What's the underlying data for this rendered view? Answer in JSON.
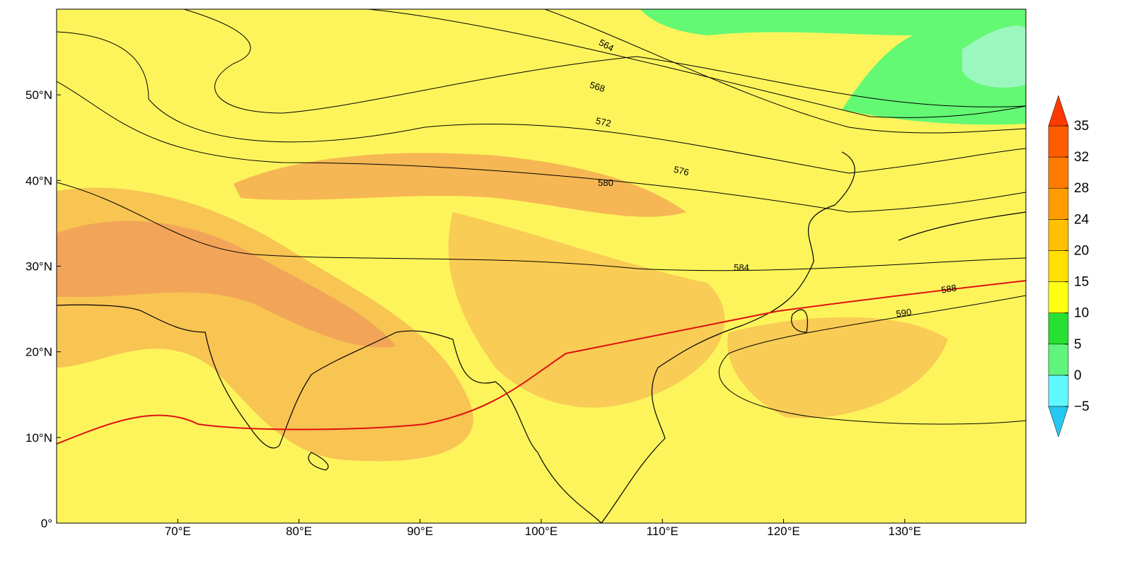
{
  "map": {
    "xlim": [
      60,
      140
    ],
    "ylim": [
      0,
      60
    ],
    "lon_ticks": [
      {
        "value": 70,
        "label": "70°E"
      },
      {
        "value": 80,
        "label": "80°E"
      },
      {
        "value": 90,
        "label": "90°E"
      },
      {
        "value": 100,
        "label": "100°E"
      },
      {
        "value": 110,
        "label": "110°E"
      },
      {
        "value": 120,
        "label": "120°E"
      },
      {
        "value": 130,
        "label": "130°E"
      }
    ],
    "lat_ticks": [
      {
        "value": 0,
        "label": "0°"
      },
      {
        "value": 10,
        "label": "10°N"
      },
      {
        "value": 20,
        "label": "20°N"
      },
      {
        "value": 30,
        "label": "30°N"
      },
      {
        "value": 40,
        "label": "40°N"
      },
      {
        "value": 50,
        "label": "50°N"
      }
    ],
    "contour_labels": [
      564,
      568,
      572,
      576,
      580,
      584,
      588,
      590
    ]
  },
  "colorbar": {
    "levels": [
      {
        "value": -5,
        "label": "−5"
      },
      0,
      5,
      10,
      15,
      20,
      24,
      28,
      32,
      35
    ],
    "colors": [
      "#5ff8ff",
      "#5ff47c",
      "#26e032",
      "#ffff10",
      "#ffe000",
      "#ffc000",
      "#ff9d00",
      "#ff7c00",
      "#ff5c00"
    ],
    "under_color": "#25c8f2",
    "over_color": "#ff3a00"
  }
}
